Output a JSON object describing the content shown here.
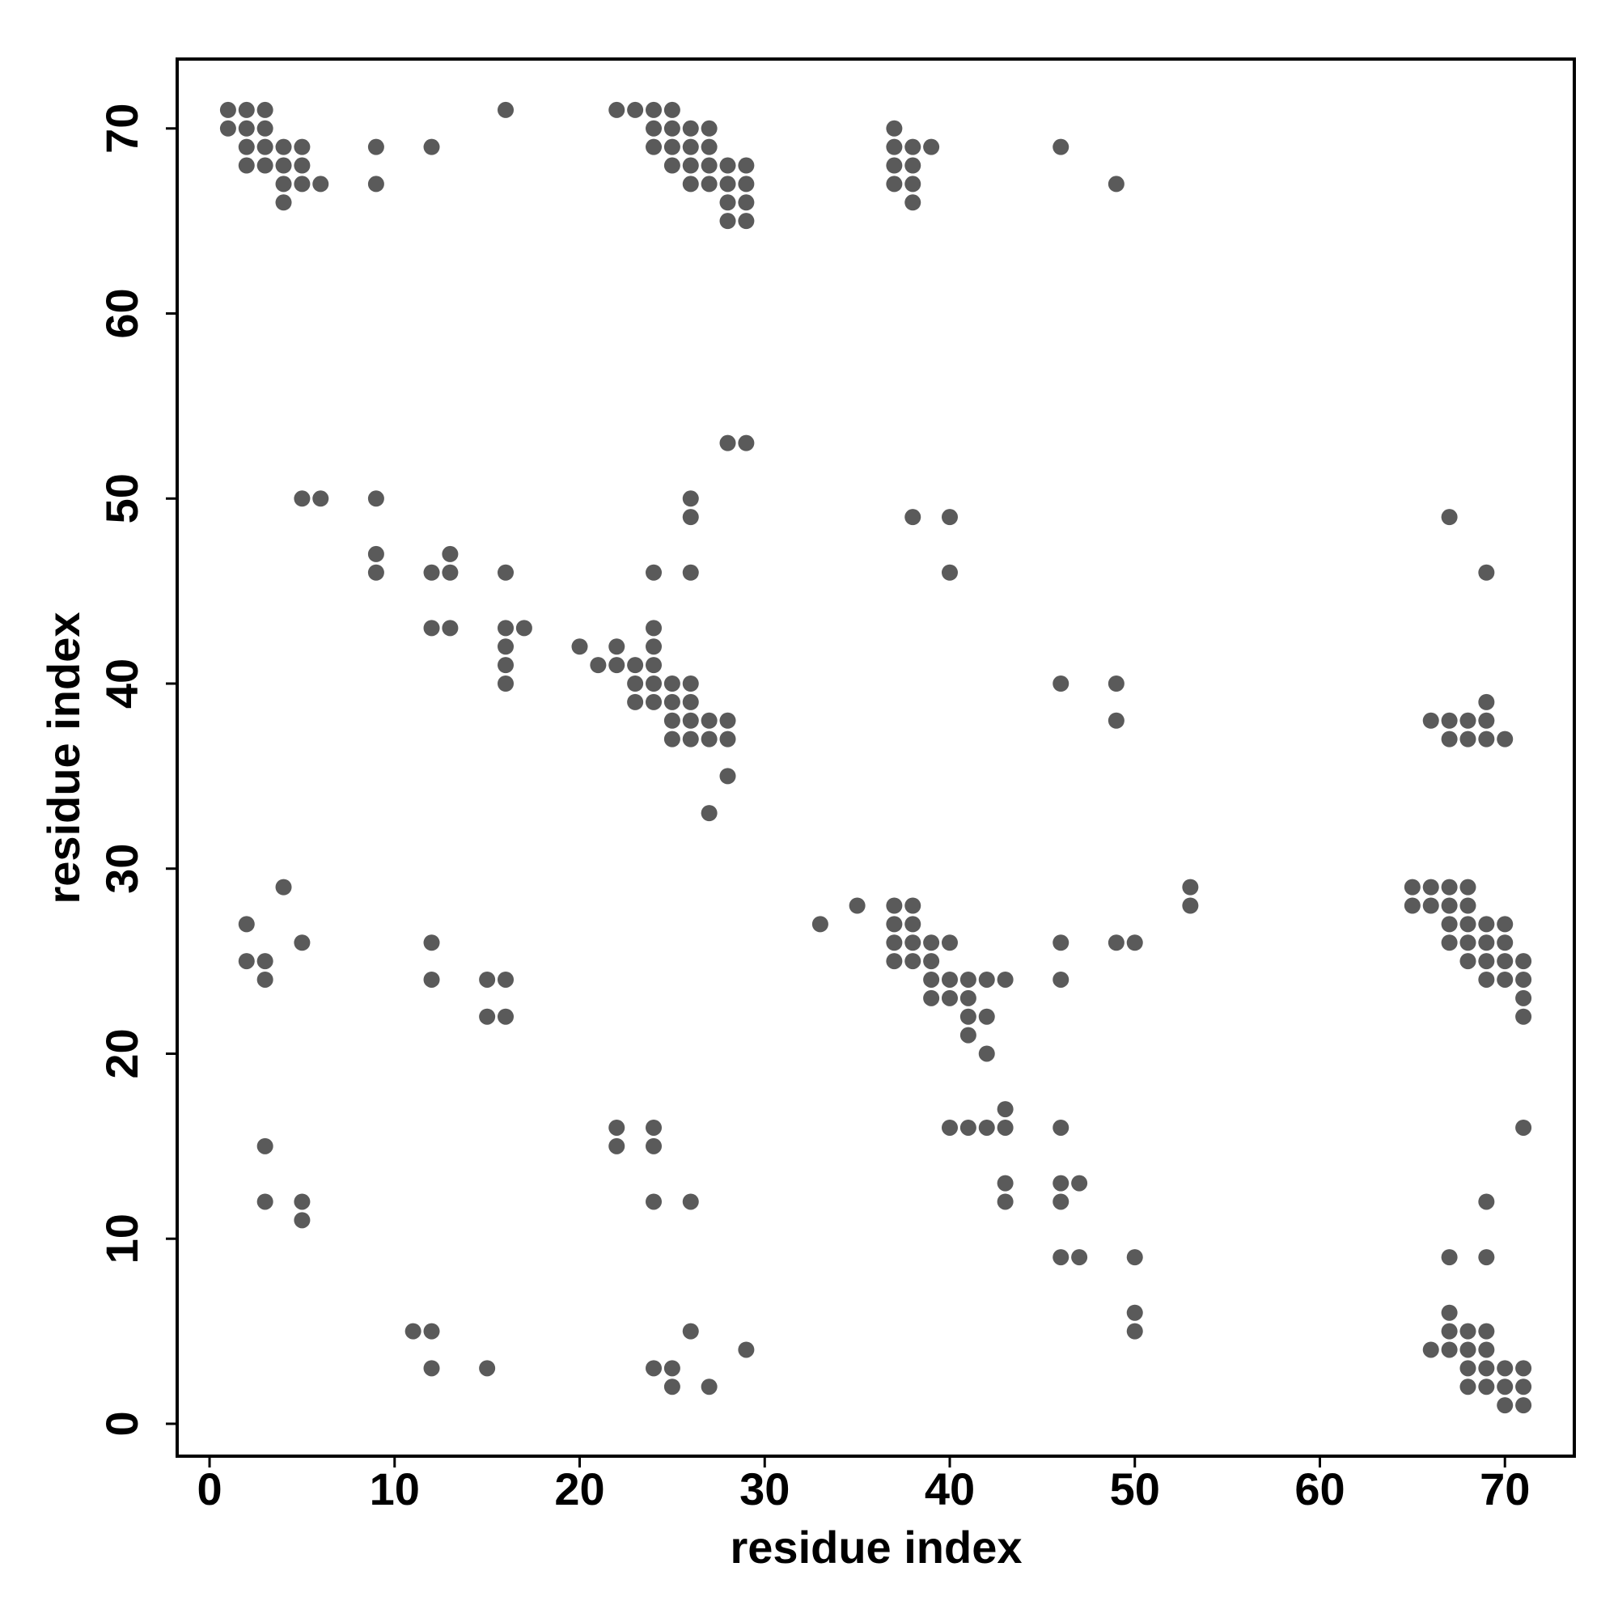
{
  "chart_data": {
    "type": "scatter",
    "xlabel": "residue index",
    "ylabel": "residue index",
    "xlim": [
      -1.75,
      73.75
    ],
    "ylim": [
      -1.75,
      73.75
    ],
    "xticks": [
      0,
      10,
      20,
      30,
      40,
      50,
      60,
      70
    ],
    "yticks": [
      0,
      10,
      20,
      30,
      40,
      50,
      60,
      70
    ],
    "color": "#5a5a5a",
    "grid": false,
    "x": [
      1,
      2,
      3,
      16,
      22,
      23,
      24,
      25,
      1,
      2,
      3,
      24,
      25,
      26,
      27,
      37,
      2,
      3,
      4,
      5,
      9,
      12,
      24,
      25,
      26,
      27,
      37,
      38,
      39,
      46,
      2,
      3,
      4,
      5,
      25,
      26,
      27,
      28,
      29,
      37,
      38,
      4,
      5,
      6,
      9,
      26,
      27,
      28,
      29,
      37,
      38,
      49,
      4,
      28,
      29,
      38,
      28,
      29,
      28,
      29,
      5,
      6,
      9,
      26,
      26,
      38,
      40,
      67,
      9,
      13,
      9,
      12,
      13,
      16,
      24,
      26,
      40,
      69,
      12,
      13,
      16,
      17,
      24,
      16,
      20,
      22,
      24,
      16,
      21,
      22,
      23,
      24,
      16,
      23,
      24,
      25,
      26,
      46,
      49,
      23,
      24,
      25,
      26,
      69,
      25,
      26,
      27,
      28,
      49,
      66,
      67,
      68,
      69,
      25,
      26,
      27,
      28,
      67,
      68,
      69,
      70,
      28,
      27,
      4,
      53,
      65,
      66,
      67,
      68,
      35,
      37,
      38,
      53,
      65,
      66,
      67,
      68,
      2,
      33,
      37,
      38,
      67,
      68,
      69,
      70,
      5,
      12,
      37,
      38,
      39,
      40,
      46,
      49,
      50,
      67,
      68,
      69,
      70,
      2,
      3,
      37,
      38,
      39,
      68,
      69,
      70,
      71,
      3,
      12,
      15,
      16,
      39,
      40,
      41,
      42,
      43,
      46,
      69,
      70,
      71,
      39,
      40,
      41,
      71,
      15,
      16,
      41,
      42,
      71,
      41,
      42,
      43,
      22,
      24,
      40,
      41,
      42,
      43,
      46,
      71,
      3,
      22,
      24,
      43,
      46,
      47,
      3,
      5,
      24,
      26,
      43,
      46,
      69,
      5,
      46,
      47,
      50,
      67,
      69,
      50,
      67,
      11,
      12,
      26,
      50,
      67,
      68,
      69,
      29,
      66,
      67,
      68,
      69,
      12,
      15,
      24,
      25,
      68,
      69,
      70,
      71,
      25,
      27,
      68,
      69,
      70,
      71,
      70,
      71
    ],
    "y": [
      71,
      71,
      71,
      71,
      71,
      71,
      71,
      71,
      70,
      70,
      70,
      70,
      70,
      70,
      70,
      70,
      69,
      69,
      69,
      69,
      69,
      69,
      69,
      69,
      69,
      69,
      69,
      69,
      69,
      69,
      68,
      68,
      68,
      68,
      68,
      68,
      68,
      68,
      68,
      68,
      68,
      67,
      67,
      67,
      67,
      67,
      67,
      67,
      67,
      67,
      67,
      67,
      66,
      66,
      66,
      66,
      65,
      65,
      53,
      53,
      50,
      50,
      50,
      50,
      49,
      49,
      49,
      49,
      47,
      47,
      46,
      46,
      46,
      46,
      46,
      46,
      46,
      46,
      43,
      43,
      43,
      43,
      43,
      42,
      42,
      42,
      42,
      41,
      41,
      41,
      41,
      41,
      40,
      40,
      40,
      40,
      40,
      40,
      40,
      39,
      39,
      39,
      39,
      39,
      38,
      38,
      38,
      38,
      38,
      38,
      38,
      38,
      38,
      37,
      37,
      37,
      37,
      37,
      37,
      37,
      37,
      35,
      33,
      29,
      29,
      29,
      29,
      29,
      29,
      28,
      28,
      28,
      28,
      28,
      28,
      28,
      28,
      27,
      27,
      27,
      27,
      27,
      27,
      27,
      27,
      26,
      26,
      26,
      26,
      26,
      26,
      26,
      26,
      26,
      26,
      26,
      26,
      26,
      25,
      25,
      25,
      25,
      25,
      25,
      25,
      25,
      25,
      24,
      24,
      24,
      24,
      24,
      24,
      24,
      24,
      24,
      24,
      24,
      24,
      24,
      23,
      23,
      23,
      23,
      22,
      22,
      22,
      22,
      22,
      21,
      20,
      17,
      16,
      16,
      16,
      16,
      16,
      16,
      16,
      16,
      15,
      15,
      15,
      13,
      13,
      13,
      12,
      12,
      12,
      12,
      12,
      12,
      12,
      11,
      9,
      9,
      9,
      9,
      9,
      6,
      6,
      5,
      5,
      5,
      5,
      5,
      5,
      5,
      4,
      4,
      4,
      4,
      4,
      3,
      3,
      3,
      3,
      3,
      3,
      3,
      3,
      2,
      2,
      2,
      2,
      2,
      2,
      1,
      1
    ]
  }
}
